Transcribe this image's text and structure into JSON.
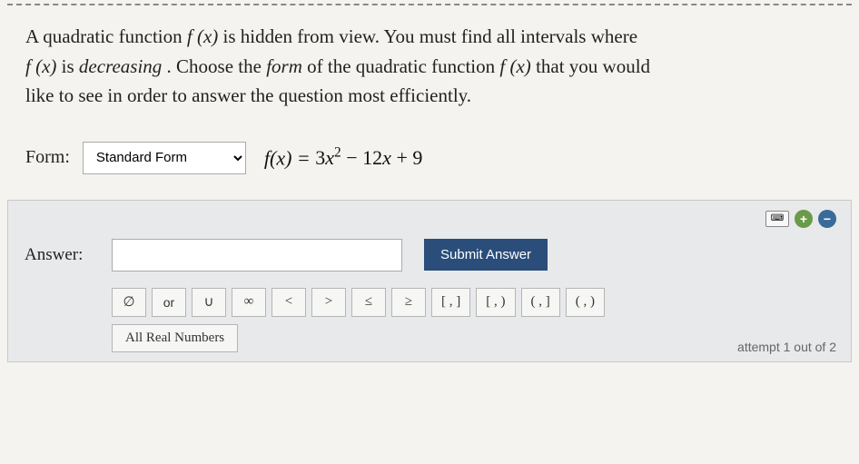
{
  "question": {
    "line1_pre": "A quadratic function ",
    "fx": "f (x)",
    "line1_mid": " is hidden from view. You must find all intervals where",
    "line2_pre": " is ",
    "decreasing": "decreasing",
    "line2_mid": ". Choose the ",
    "form_word": "form",
    "line2_post": " of the quadratic function ",
    "line2_end": " that you would",
    "line3": "like to see in order to answer the question most efficiently."
  },
  "form": {
    "label": "Form:",
    "selected": "Standard Form",
    "equation_lhs": "f(x) = ",
    "equation_rhs": "3x² − 12x + 9"
  },
  "answer": {
    "label": "Answer:",
    "value": "",
    "submit": "Submit Answer"
  },
  "symbols": {
    "phi": "∅",
    "or": "or",
    "union": "∪",
    "inf": "∞",
    "lt": "<",
    "gt": ">",
    "le": "≤",
    "ge": "≥",
    "cc": "[ , ]",
    "co": "[ , )",
    "oc": "( , ]",
    "oo": "( , )",
    "all_real": "All Real Numbers"
  },
  "icons": {
    "keyboard": "⌨",
    "plus": "+",
    "minus": "−"
  },
  "footer": {
    "attempt": "attempt 1 out of 2"
  },
  "colors": {
    "panel_bg": "#e8e9ea",
    "submit_bg": "#2a4d7a",
    "plus_bg": "#6a9a4a",
    "minus_bg": "#3a6a9a"
  }
}
